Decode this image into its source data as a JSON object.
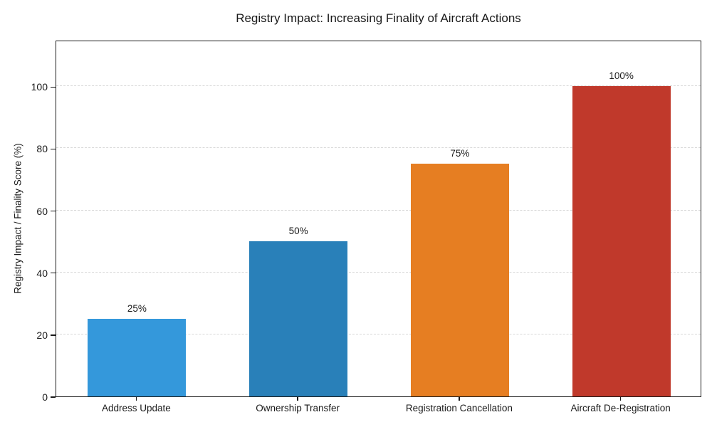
{
  "chart_data": {
    "type": "bar",
    "title": "Registry Impact: Increasing Finality of Aircraft Actions",
    "categories": [
      "Address Update",
      "Ownership Transfer",
      "Registration Cancellation",
      "Aircraft De-Registration"
    ],
    "values": [
      25,
      50,
      75,
      100
    ],
    "bar_labels": [
      "25%",
      "50%",
      "75%",
      "100%"
    ],
    "bar_colors": [
      "#3498db",
      "#2980b9",
      "#e67e22",
      "#c0392b"
    ],
    "xlabel": "",
    "ylabel": "Registry Impact / Finality Score (%)",
    "ylim": [
      0,
      115
    ],
    "yticks": [
      0,
      20,
      40,
      60,
      80,
      100
    ],
    "grid": "horizontal-dashed",
    "gridline_color": "#d7d7d7",
    "spine_color": "#1a1a1a",
    "text_color": "#1a1a1a",
    "legend": "none"
  }
}
